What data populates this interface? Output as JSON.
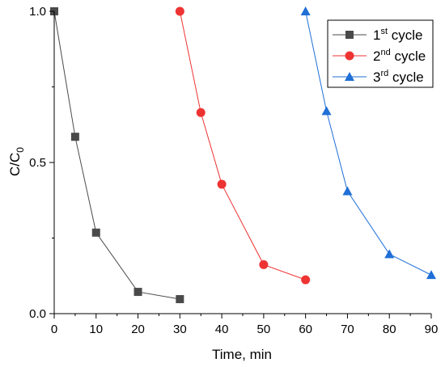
{
  "chart_data": {
    "type": "line",
    "title": "",
    "xlabel": "Time, min",
    "ylabel_main": "C/C",
    "ylabel_sub": "0",
    "xlim": [
      0,
      90
    ],
    "ylim": [
      0,
      1.0
    ],
    "xticks": [
      0,
      10,
      20,
      30,
      40,
      50,
      60,
      70,
      80,
      90
    ],
    "xtick_labels": [
      "0",
      "10",
      "20",
      "30",
      "40",
      "50",
      "60",
      "70",
      "80",
      "90"
    ],
    "yticks": [
      0.0,
      0.5,
      1.0
    ],
    "ytick_labels": [
      "0.0",
      "0.5",
      "1.0"
    ],
    "grid": false,
    "legend_position": "top-right",
    "series": [
      {
        "name_main": "1",
        "name_sup": "st",
        "name_rest": " cycle",
        "color": "#4a4a4a",
        "marker": "square",
        "x": [
          0,
          5,
          10,
          20,
          30
        ],
        "y": [
          1.0,
          0.585,
          0.268,
          0.072,
          0.048
        ]
      },
      {
        "name_main": "2",
        "name_sup": "nd",
        "name_rest": " cycle",
        "color": "#ee3333",
        "marker": "circle",
        "x": [
          30,
          35,
          40,
          50,
          60
        ],
        "y": [
          1.0,
          0.665,
          0.428,
          0.162,
          0.112
        ]
      },
      {
        "name_main": "3",
        "name_sup": "rd",
        "name_rest": " cycle",
        "color": "#1f6fd6",
        "marker": "triangle",
        "x": [
          60,
          65,
          70,
          80,
          90
        ],
        "y": [
          1.0,
          0.67,
          0.405,
          0.197,
          0.128
        ]
      }
    ]
  }
}
